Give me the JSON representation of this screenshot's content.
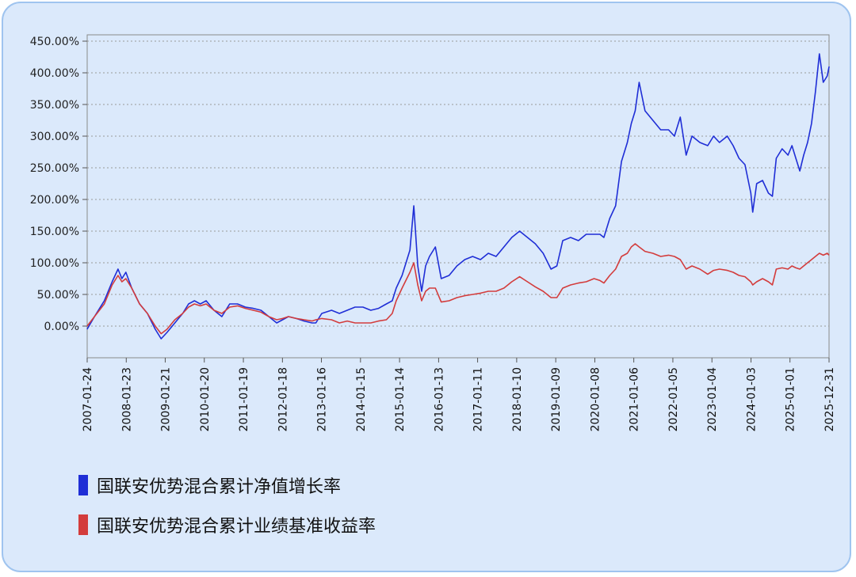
{
  "chart_data": {
    "type": "line",
    "x_ticks": [
      "2007-01-24",
      "2008-01-23",
      "2009-01-21",
      "2010-01-20",
      "2011-01-19",
      "2012-01-18",
      "2013-01-16",
      "2014-01-15",
      "2015-01-14",
      "2016-01-13",
      "2017-01-11",
      "2018-01-10",
      "2019-01-09",
      "2020-01-08",
      "2021-01-06",
      "2022-01-05",
      "2023-01-04",
      "2024-01-03",
      "2025-01-01",
      "2025-12-31"
    ],
    "y_ticks": [
      "0.00%",
      "50.00%",
      "100.00%",
      "150.00%",
      "200.00%",
      "250.00%",
      "300.00%",
      "350.00%",
      "400.00%",
      "450.00%"
    ],
    "ylim": [
      -50,
      460
    ],
    "grid": "horizontal dotted",
    "legend_placement": "bottom-left",
    "series": [
      {
        "name": "国联安优势混合累计净值增长率",
        "color": "#1f2ed6",
        "points": [
          [
            2007.06,
            -5
          ],
          [
            2007.25,
            15
          ],
          [
            2007.5,
            40
          ],
          [
            2007.7,
            70
          ],
          [
            2007.85,
            90
          ],
          [
            2007.95,
            75
          ],
          [
            2008.05,
            85
          ],
          [
            2008.2,
            60
          ],
          [
            2008.4,
            35
          ],
          [
            2008.6,
            20
          ],
          [
            2008.8,
            -5
          ],
          [
            2008.95,
            -20
          ],
          [
            2009.1,
            -10
          ],
          [
            2009.3,
            5
          ],
          [
            2009.5,
            20
          ],
          [
            2009.65,
            35
          ],
          [
            2009.8,
            40
          ],
          [
            2009.95,
            35
          ],
          [
            2010.1,
            40
          ],
          [
            2010.3,
            25
          ],
          [
            2010.5,
            15
          ],
          [
            2010.7,
            35
          ],
          [
            2010.9,
            35
          ],
          [
            2011.1,
            30
          ],
          [
            2011.3,
            28
          ],
          [
            2011.5,
            25
          ],
          [
            2011.7,
            15
          ],
          [
            2011.9,
            5
          ],
          [
            2012.05,
            10
          ],
          [
            2012.2,
            15
          ],
          [
            2012.4,
            12
          ],
          [
            2012.6,
            8
          ],
          [
            2012.8,
            5
          ],
          [
            2012.9,
            5
          ],
          [
            2013.05,
            20
          ],
          [
            2013.3,
            25
          ],
          [
            2013.5,
            20
          ],
          [
            2013.7,
            25
          ],
          [
            2013.9,
            30
          ],
          [
            2014.1,
            30
          ],
          [
            2014.3,
            25
          ],
          [
            2014.5,
            28
          ],
          [
            2014.7,
            35
          ],
          [
            2014.85,
            40
          ],
          [
            2014.95,
            60
          ],
          [
            2015.1,
            80
          ],
          [
            2015.3,
            120
          ],
          [
            2015.4,
            190
          ],
          [
            2015.5,
            95
          ],
          [
            2015.6,
            55
          ],
          [
            2015.7,
            95
          ],
          [
            2015.8,
            110
          ],
          [
            2015.95,
            125
          ],
          [
            2016.1,
            75
          ],
          [
            2016.3,
            80
          ],
          [
            2016.5,
            95
          ],
          [
            2016.7,
            105
          ],
          [
            2016.9,
            110
          ],
          [
            2017.1,
            105
          ],
          [
            2017.3,
            115
          ],
          [
            2017.5,
            110
          ],
          [
            2017.7,
            125
          ],
          [
            2017.9,
            140
          ],
          [
            2018.1,
            150
          ],
          [
            2018.3,
            140
          ],
          [
            2018.5,
            130
          ],
          [
            2018.7,
            115
          ],
          [
            2018.9,
            90
          ],
          [
            2019.05,
            95
          ],
          [
            2019.2,
            135
          ],
          [
            2019.4,
            140
          ],
          [
            2019.6,
            135
          ],
          [
            2019.8,
            145
          ],
          [
            2020.0,
            145
          ],
          [
            2020.15,
            145
          ],
          [
            2020.25,
            140
          ],
          [
            2020.4,
            170
          ],
          [
            2020.55,
            190
          ],
          [
            2020.7,
            260
          ],
          [
            2020.85,
            290
          ],
          [
            2020.95,
            320
          ],
          [
            2021.05,
            340
          ],
          [
            2021.15,
            385
          ],
          [
            2021.3,
            340
          ],
          [
            2021.5,
            325
          ],
          [
            2021.7,
            310
          ],
          [
            2021.9,
            310
          ],
          [
            2022.05,
            300
          ],
          [
            2022.2,
            330
          ],
          [
            2022.35,
            270
          ],
          [
            2022.5,
            300
          ],
          [
            2022.7,
            290
          ],
          [
            2022.9,
            285
          ],
          [
            2023.05,
            300
          ],
          [
            2023.2,
            290
          ],
          [
            2023.4,
            300
          ],
          [
            2023.55,
            285
          ],
          [
            2023.7,
            265
          ],
          [
            2023.85,
            255
          ],
          [
            2024.0,
            210
          ],
          [
            2024.05,
            180
          ],
          [
            2024.15,
            225
          ],
          [
            2024.3,
            230
          ],
          [
            2024.45,
            210
          ],
          [
            2024.55,
            205
          ],
          [
            2024.65,
            265
          ],
          [
            2024.8,
            280
          ],
          [
            2024.95,
            270
          ],
          [
            2025.05,
            285
          ],
          [
            2025.15,
            265
          ],
          [
            2025.25,
            245
          ],
          [
            2025.35,
            270
          ],
          [
            2025.45,
            290
          ],
          [
            2025.55,
            320
          ],
          [
            2025.65,
            370
          ],
          [
            2025.75,
            430
          ],
          [
            2025.85,
            385
          ],
          [
            2025.95,
            395
          ],
          [
            2026.0,
            410
          ]
        ]
      },
      {
        "name": "国联安优势混合累计业绩基准收益率",
        "color": "#d33c3c",
        "points": [
          [
            2007.06,
            0
          ],
          [
            2007.25,
            15
          ],
          [
            2007.5,
            35
          ],
          [
            2007.7,
            65
          ],
          [
            2007.85,
            80
          ],
          [
            2007.95,
            70
          ],
          [
            2008.05,
            75
          ],
          [
            2008.2,
            60
          ],
          [
            2008.4,
            35
          ],
          [
            2008.6,
            20
          ],
          [
            2008.8,
            0
          ],
          [
            2008.95,
            -12
          ],
          [
            2009.1,
            -5
          ],
          [
            2009.3,
            10
          ],
          [
            2009.5,
            20
          ],
          [
            2009.65,
            30
          ],
          [
            2009.8,
            35
          ],
          [
            2009.95,
            32
          ],
          [
            2010.1,
            35
          ],
          [
            2010.3,
            25
          ],
          [
            2010.5,
            20
          ],
          [
            2010.7,
            30
          ],
          [
            2010.9,
            32
          ],
          [
            2011.1,
            28
          ],
          [
            2011.3,
            25
          ],
          [
            2011.5,
            22
          ],
          [
            2011.7,
            15
          ],
          [
            2011.9,
            10
          ],
          [
            2012.05,
            12
          ],
          [
            2012.2,
            15
          ],
          [
            2012.4,
            12
          ],
          [
            2012.6,
            10
          ],
          [
            2012.8,
            8
          ],
          [
            2012.9,
            10
          ],
          [
            2013.05,
            12
          ],
          [
            2013.3,
            10
          ],
          [
            2013.5,
            5
          ],
          [
            2013.7,
            8
          ],
          [
            2013.9,
            5
          ],
          [
            2014.1,
            5
          ],
          [
            2014.3,
            5
          ],
          [
            2014.5,
            8
          ],
          [
            2014.7,
            10
          ],
          [
            2014.85,
            20
          ],
          [
            2014.95,
            40
          ],
          [
            2015.1,
            60
          ],
          [
            2015.3,
            85
          ],
          [
            2015.4,
            100
          ],
          [
            2015.5,
            65
          ],
          [
            2015.6,
            40
          ],
          [
            2015.7,
            55
          ],
          [
            2015.8,
            60
          ],
          [
            2015.95,
            60
          ],
          [
            2016.1,
            38
          ],
          [
            2016.3,
            40
          ],
          [
            2016.5,
            45
          ],
          [
            2016.7,
            48
          ],
          [
            2016.9,
            50
          ],
          [
            2017.1,
            52
          ],
          [
            2017.3,
            55
          ],
          [
            2017.5,
            55
          ],
          [
            2017.7,
            60
          ],
          [
            2017.9,
            70
          ],
          [
            2018.1,
            78
          ],
          [
            2018.3,
            70
          ],
          [
            2018.5,
            62
          ],
          [
            2018.7,
            55
          ],
          [
            2018.9,
            45
          ],
          [
            2019.05,
            45
          ],
          [
            2019.2,
            60
          ],
          [
            2019.4,
            65
          ],
          [
            2019.6,
            68
          ],
          [
            2019.8,
            70
          ],
          [
            2020.0,
            75
          ],
          [
            2020.15,
            72
          ],
          [
            2020.25,
            68
          ],
          [
            2020.4,
            80
          ],
          [
            2020.55,
            90
          ],
          [
            2020.7,
            110
          ],
          [
            2020.85,
            115
          ],
          [
            2020.95,
            125
          ],
          [
            2021.05,
            130
          ],
          [
            2021.15,
            125
          ],
          [
            2021.3,
            118
          ],
          [
            2021.5,
            115
          ],
          [
            2021.7,
            110
          ],
          [
            2021.9,
            112
          ],
          [
            2022.05,
            110
          ],
          [
            2022.2,
            105
          ],
          [
            2022.35,
            90
          ],
          [
            2022.5,
            95
          ],
          [
            2022.7,
            90
          ],
          [
            2022.9,
            82
          ],
          [
            2023.05,
            88
          ],
          [
            2023.2,
            90
          ],
          [
            2023.4,
            88
          ],
          [
            2023.55,
            85
          ],
          [
            2023.7,
            80
          ],
          [
            2023.85,
            78
          ],
          [
            2024.0,
            70
          ],
          [
            2024.05,
            65
          ],
          [
            2024.15,
            70
          ],
          [
            2024.3,
            75
          ],
          [
            2024.45,
            70
          ],
          [
            2024.55,
            65
          ],
          [
            2024.65,
            90
          ],
          [
            2024.8,
            92
          ],
          [
            2024.95,
            90
          ],
          [
            2025.05,
            95
          ],
          [
            2025.15,
            92
          ],
          [
            2025.25,
            90
          ],
          [
            2025.35,
            95
          ],
          [
            2025.45,
            100
          ],
          [
            2025.55,
            105
          ],
          [
            2025.65,
            110
          ],
          [
            2025.75,
            115
          ],
          [
            2025.85,
            112
          ],
          [
            2025.95,
            115
          ],
          [
            2026.0,
            112
          ]
        ]
      }
    ]
  }
}
